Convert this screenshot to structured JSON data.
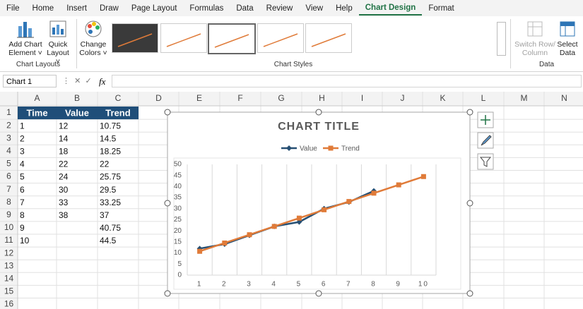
{
  "ribbon": {
    "tabs": [
      "File",
      "Home",
      "Insert",
      "Draw",
      "Page Layout",
      "Formulas",
      "Data",
      "Review",
      "View",
      "Help",
      "Chart Design",
      "Format"
    ],
    "groups": [
      {
        "label": "Chart Layouts",
        "buttons": [
          "Add Chart Element",
          "Quick Layout"
        ]
      },
      {
        "label": "Chart Styles",
        "buttons": [
          "Change Colors"
        ]
      },
      {
        "label": "Data",
        "buttons": [
          "Switch Row/ Column",
          "Select Data"
        ]
      }
    ]
  },
  "formula_bar": {
    "name_box": "Chart 1",
    "function_icon": "fx"
  },
  "sheet": {
    "columns": [
      "A",
      "B",
      "C",
      "D",
      "E",
      "F",
      "G",
      "H",
      "I",
      "J",
      "K",
      "L",
      "M",
      "N"
    ],
    "rows": [
      1,
      2,
      3,
      4,
      5,
      6,
      7,
      8,
      9,
      10,
      11,
      12,
      13,
      14,
      15,
      16
    ],
    "cells": [
      [
        "Time",
        "Value",
        "Trend"
      ],
      [
        1,
        12,
        10.75
      ],
      [
        2,
        14,
        14.5
      ],
      [
        3,
        18,
        18.25
      ],
      [
        4,
        22,
        22
      ],
      [
        5,
        24,
        25.75
      ],
      [
        6,
        30,
        29.5
      ],
      [
        7,
        33,
        33.25
      ],
      [
        8,
        38,
        37
      ],
      [
        9,
        null,
        40.75
      ],
      [
        10,
        null,
        44.5
      ]
    ]
  },
  "chart_data": {
    "type": "line",
    "title": "CHART TITLE",
    "legend": "top",
    "categories": [
      1,
      2,
      3,
      4,
      5,
      6,
      7,
      8,
      9,
      10
    ],
    "series": [
      {
        "name": "Value",
        "color": "#264f73",
        "values": [
          12,
          14,
          18,
          22,
          24,
          30,
          33,
          38,
          null,
          null
        ]
      },
      {
        "name": "Trend",
        "color": "#e07b39",
        "values": [
          10.75,
          14.5,
          18.25,
          22,
          25.75,
          29.5,
          33.25,
          37,
          40.75,
          44.5
        ]
      }
    ],
    "ylim": [
      0,
      50
    ],
    "yticks": [
      0,
      5,
      10,
      15,
      20,
      25,
      30,
      35,
      40,
      45,
      50
    ],
    "grid": true
  }
}
